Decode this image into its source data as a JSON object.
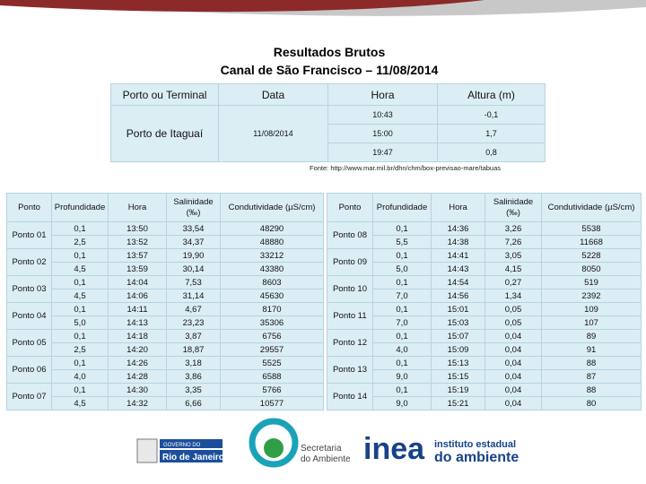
{
  "header": {
    "title_line1": "Resultados Brutos",
    "title_line2": "Canal de São Francisco – 11/08/2014"
  },
  "tide_table": {
    "columns": [
      "Porto ou Terminal",
      "Data",
      "Hora",
      "Altura (m)"
    ],
    "port": "Porto de Itaguaí",
    "date": "11/08/2014",
    "rows": [
      [
        "10:43",
        "-0,1"
      ],
      [
        "15:00",
        "1,7"
      ],
      [
        "19:47",
        "0,8"
      ]
    ]
  },
  "source": "Fonte: http://www.mar.mil.br/dhn/chm/box-previsao-mare/tabuas",
  "tables": [
    {
      "columns": [
        "Ponto",
        "Profundidade",
        "Hora",
        "Salinidade (‰)",
        "Condutividade (µS/cm)"
      ],
      "points": [
        {
          "name": "Ponto 01",
          "rows": [
            [
              "0,1",
              "13:50",
              "33,54",
              "48290"
            ],
            [
              "2,5",
              "13:52",
              "34,37",
              "48880"
            ]
          ]
        },
        {
          "name": "Ponto 02",
          "rows": [
            [
              "0,1",
              "13:57",
              "19,90",
              "33212"
            ],
            [
              "4,5",
              "13:59",
              "30,14",
              "43380"
            ]
          ]
        },
        {
          "name": "Ponto 03",
          "rows": [
            [
              "0,1",
              "14:04",
              "7,53",
              "8603"
            ],
            [
              "4,5",
              "14:06",
              "31,14",
              "45630"
            ]
          ]
        },
        {
          "name": "Ponto 04",
          "rows": [
            [
              "0,1",
              "14:11",
              "4,67",
              "8170"
            ],
            [
              "5,0",
              "14:13",
              "23,23",
              "35306"
            ]
          ]
        },
        {
          "name": "Ponto 05",
          "rows": [
            [
              "0,1",
              "14:18",
              "3,87",
              "6756"
            ],
            [
              "2,5",
              "14:20",
              "18,87",
              "29557"
            ]
          ]
        },
        {
          "name": "Ponto 06",
          "rows": [
            [
              "0,1",
              "14:26",
              "3,18",
              "5525"
            ],
            [
              "4,0",
              "14:28",
              "3,86",
              "6588"
            ]
          ]
        },
        {
          "name": "Ponto 07",
          "rows": [
            [
              "0,1",
              "14:30",
              "3,35",
              "5766"
            ],
            [
              "4,5",
              "14:32",
              "6,66",
              "10577"
            ]
          ]
        }
      ]
    },
    {
      "columns": [
        "Ponto",
        "Profundidade",
        "Hora",
        "Salinidade (‰)",
        "Condutividade (µS/cm)"
      ],
      "points": [
        {
          "name": "Ponto 08",
          "rows": [
            [
              "0,1",
              "14:36",
              "3,26",
              "5538"
            ],
            [
              "5,5",
              "14:38",
              "7,26",
              "11668"
            ]
          ]
        },
        {
          "name": "Ponto 09",
          "rows": [
            [
              "0,1",
              "14:41",
              "3,05",
              "5228"
            ],
            [
              "5,0",
              "14:43",
              "4,15",
              "8050"
            ]
          ]
        },
        {
          "name": "Ponto 10",
          "rows": [
            [
              "0,1",
              "14:54",
              "0,27",
              "519"
            ],
            [
              "7,0",
              "14:56",
              "1,34",
              "2392"
            ]
          ]
        },
        {
          "name": "Ponto 11",
          "rows": [
            [
              "0,1",
              "15:01",
              "0,05",
              "109"
            ],
            [
              "7,0",
              "15:03",
              "0,05",
              "107"
            ]
          ]
        },
        {
          "name": "Ponto 12",
          "rows": [
            [
              "0,1",
              "15:07",
              "0,04",
              "89"
            ],
            [
              "4,0",
              "15:09",
              "0,04",
              "91"
            ]
          ]
        },
        {
          "name": "Ponto 13",
          "rows": [
            [
              "0,1",
              "15:13",
              "0,04",
              "88"
            ],
            [
              "9,0",
              "15:15",
              "0,04",
              "87"
            ]
          ]
        },
        {
          "name": "Ponto 14",
          "rows": [
            [
              "0,1",
              "15:19",
              "0,04",
              "88"
            ],
            [
              "9,0",
              "15:21",
              "0,04",
              "80"
            ]
          ]
        }
      ]
    }
  ],
  "logos": {
    "rj_top": "GOVERNO DO",
    "rj_bottom": "Rio de Janeiro",
    "sea_line1": "Secretaria",
    "sea_line2": "do Ambiente",
    "inea": "inea",
    "inea_line1": "instituto estadual",
    "inea_line2": "do ambiente"
  }
}
